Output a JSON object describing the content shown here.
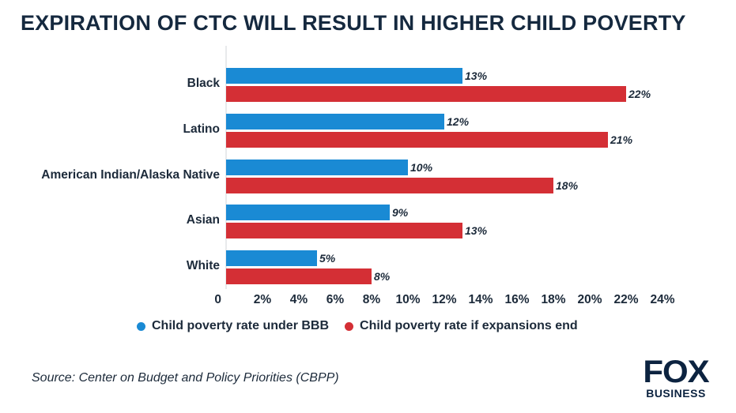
{
  "header": {
    "title": "EXPIRATION OF CTC WILL RESULT IN HIGHER CHILD POVERTY"
  },
  "colors": {
    "series_bbb": "#1a8ad4",
    "series_end": "#d42f35",
    "text": "#1c2a3a",
    "brand": "#0c2340"
  },
  "chart_data": {
    "type": "bar",
    "orientation": "horizontal",
    "title": "EXPIRATION OF CTC WILL RESULT IN HIGHER CHILD POVERTY",
    "categories": [
      "Black",
      "Latino",
      "American Indian/Alaska Native",
      "Asian",
      "White"
    ],
    "series": [
      {
        "name": "Child poverty rate under BBB",
        "values": [
          13,
          12,
          10,
          9,
          5
        ],
        "labels": [
          "13%",
          "12%",
          "10%",
          "9%",
          "5%"
        ],
        "color": "#1a8ad4"
      },
      {
        "name": "Child poverty rate if expansions end",
        "values": [
          22,
          21,
          18,
          13,
          8
        ],
        "labels": [
          "22%",
          "21%",
          "18%",
          "13%",
          "8%"
        ],
        "color": "#d42f35"
      }
    ],
    "xticks": [
      "0",
      "2%",
      "4%",
      "6%",
      "8%",
      "10%",
      "12%",
      "14%",
      "16%",
      "18%",
      "20%",
      "22%",
      "24%"
    ],
    "xlim": [
      0,
      24
    ],
    "grid": false,
    "legend_position": "bottom-left"
  },
  "legend": {
    "items": [
      {
        "label": "Child poverty rate under BBB",
        "color": "#1a8ad4"
      },
      {
        "label": "Child poverty rate if expansions end",
        "color": "#d42f35"
      }
    ]
  },
  "footer": {
    "source": "Source: Center on Budget and Policy Priorities (CBPP)",
    "logo_top": "FOX",
    "logo_bottom": "BUSINESS"
  }
}
